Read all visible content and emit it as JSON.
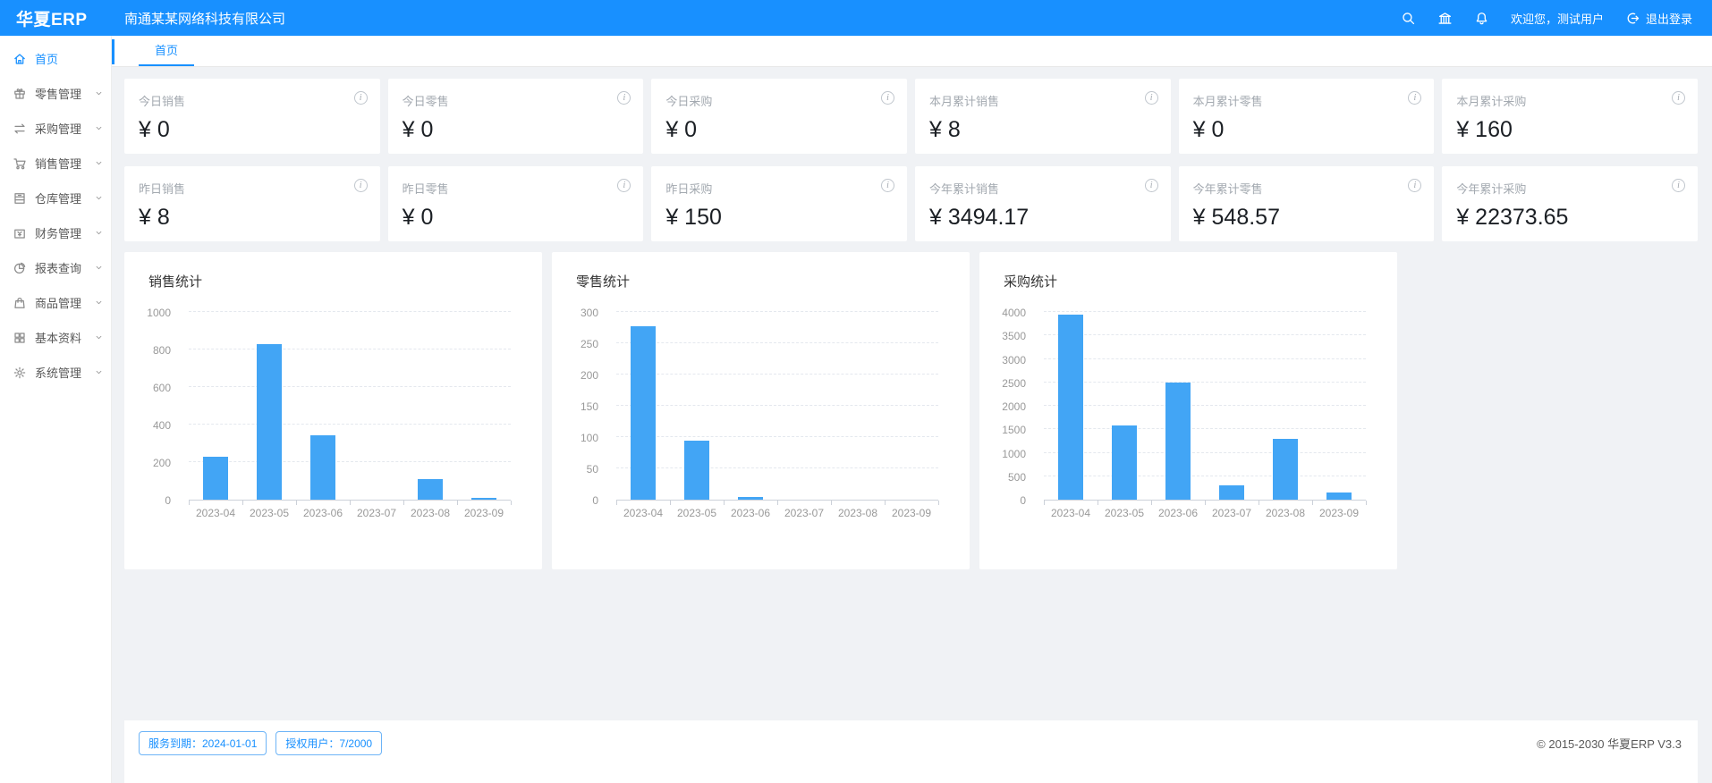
{
  "colors": {
    "primary": "#1890ff",
    "bar": "#42a5f5"
  },
  "header": {
    "logo": "华夏ERP",
    "company": "南通某某网络科技有限公司",
    "welcome": "欢迎您，测试用户",
    "logout_label": "退出登录"
  },
  "sidebar": {
    "items": [
      {
        "id": "home",
        "label": "首页",
        "icon": "home-icon",
        "active": true,
        "chevron": false
      },
      {
        "id": "retail",
        "label": "零售管理",
        "icon": "gift-icon",
        "active": false,
        "chevron": true
      },
      {
        "id": "purchase",
        "label": "采购管理",
        "icon": "swap-icon",
        "active": false,
        "chevron": true
      },
      {
        "id": "sales",
        "label": "销售管理",
        "icon": "cart-icon",
        "active": false,
        "chevron": true
      },
      {
        "id": "warehouse",
        "label": "仓库管理",
        "icon": "warehouse-icon",
        "active": false,
        "chevron": true
      },
      {
        "id": "finance",
        "label": "财务管理",
        "icon": "wallet-icon",
        "active": false,
        "chevron": true
      },
      {
        "id": "report",
        "label": "报表查询",
        "icon": "pie-icon",
        "active": false,
        "chevron": true
      },
      {
        "id": "goods",
        "label": "商品管理",
        "icon": "bag-icon",
        "active": false,
        "chevron": true
      },
      {
        "id": "basic",
        "label": "基本资料",
        "icon": "grid-icon",
        "active": false,
        "chevron": true
      },
      {
        "id": "system",
        "label": "系统管理",
        "icon": "gear-icon",
        "active": false,
        "chevron": true
      }
    ]
  },
  "tabs": [
    {
      "label": "首页",
      "active": true
    }
  ],
  "stat_cards": [
    {
      "label": "今日销售",
      "value": "¥ 0"
    },
    {
      "label": "今日零售",
      "value": "¥ 0"
    },
    {
      "label": "今日采购",
      "value": "¥ 0"
    },
    {
      "label": "本月累计销售",
      "value": "¥ 8"
    },
    {
      "label": "本月累计零售",
      "value": "¥ 0"
    },
    {
      "label": "本月累计采购",
      "value": "¥ 160"
    },
    {
      "label": "昨日销售",
      "value": "¥ 8"
    },
    {
      "label": "昨日零售",
      "value": "¥ 0"
    },
    {
      "label": "昨日采购",
      "value": "¥ 150"
    },
    {
      "label": "今年累计销售",
      "value": "¥ 3494.17"
    },
    {
      "label": "今年累计零售",
      "value": "¥ 548.57"
    },
    {
      "label": "今年累计采购",
      "value": "¥ 22373.65"
    }
  ],
  "chart_data": [
    {
      "id": "sales-stats",
      "type": "bar",
      "title": "销售统计",
      "categories": [
        "2023-04",
        "2023-05",
        "2023-06",
        "2023-07",
        "2023-08",
        "2023-09"
      ],
      "values": [
        230,
        830,
        345,
        0,
        110,
        10
      ],
      "ylim": [
        0,
        1000
      ],
      "yticks": [
        0,
        200,
        400,
        600,
        800,
        1000
      ],
      "xlabel": "",
      "ylabel": "",
      "grid": "dashed-horizontal",
      "legend": "none"
    },
    {
      "id": "retail-stats",
      "type": "bar",
      "title": "零售统计",
      "categories": [
        "2023-04",
        "2023-05",
        "2023-06",
        "2023-07",
        "2023-08",
        "2023-09"
      ],
      "values": [
        277,
        95,
        5,
        0,
        0,
        0
      ],
      "ylim": [
        0,
        300
      ],
      "yticks": [
        0,
        50,
        100,
        150,
        200,
        250,
        300
      ],
      "xlabel": "",
      "ylabel": "",
      "grid": "dashed-horizontal",
      "legend": "none"
    },
    {
      "id": "purchase-stats",
      "type": "bar",
      "title": "采购统计",
      "categories": [
        "2023-04",
        "2023-05",
        "2023-06",
        "2023-07",
        "2023-08",
        "2023-09"
      ],
      "values": [
        3950,
        1580,
        2500,
        300,
        1300,
        150
      ],
      "ylim": [
        0,
        4000
      ],
      "yticks": [
        0,
        500,
        1000,
        1500,
        2000,
        2500,
        3000,
        3500,
        4000
      ],
      "xlabel": "",
      "ylabel": "",
      "grid": "dashed-horizontal",
      "legend": "none"
    }
  ],
  "footer": {
    "badges": [
      {
        "id": "service-expiry",
        "label": "服务到期：2024-01-01"
      },
      {
        "id": "authorized-users",
        "label": "授权用户：7/2000"
      }
    ],
    "copyright": "© 2015-2030 华夏ERP V3.3"
  }
}
